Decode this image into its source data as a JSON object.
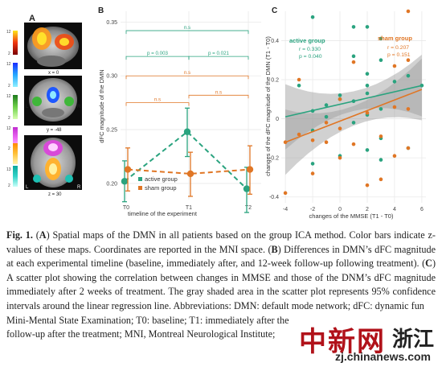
{
  "colors": {
    "active": "#2aa37f",
    "sham": "#e07625",
    "grid": "#e9e9e9",
    "ci_band": "#9a9a9a"
  },
  "panel_a": {
    "letter": "A",
    "slices": [
      {
        "label": "x = 0",
        "colorbar_top": "12",
        "colorbar_bottom": "2"
      },
      {
        "label": "y = -48",
        "colorbar_top": "12",
        "colorbar_bottom": "2"
      },
      {
        "label": "z = 30",
        "colorbar_top": "12",
        "colorbar_bottom": "2"
      }
    ],
    "colorbar_labels": [
      "12",
      "2",
      "12",
      "2",
      "12",
      "2",
      "12",
      "2",
      "13",
      "2"
    ],
    "orientation": {
      "left": "L",
      "right": "R"
    }
  },
  "chart_data": [
    {
      "panel": "B",
      "type": "line",
      "xlabel": "timeline of the experiment",
      "ylabel": "dFC magnitude of the DMN",
      "categories": [
        "T0",
        "T1",
        "T2"
      ],
      "ylim": [
        0.2,
        0.35
      ],
      "yticks": [
        "0.20",
        "0.25",
        "0.30",
        "0.35"
      ],
      "grid": true,
      "legend_position": "bottom-left",
      "series": [
        {
          "name": "active group",
          "values": [
            0.202,
            0.248,
            0.195
          ],
          "err_low": [
            0.183,
            0.225,
            0.173
          ],
          "err_high": [
            0.221,
            0.27,
            0.215
          ]
        },
        {
          "name": "sham group",
          "values": [
            0.213,
            0.209,
            0.213
          ],
          "err_low": [
            0.193,
            0.188,
            0.19
          ],
          "err_high": [
            0.233,
            0.229,
            0.235
          ]
        }
      ],
      "brackets": [
        {
          "group": "active group",
          "from": "T0",
          "to": "T2",
          "y": 0.342,
          "label": "n.s"
        },
        {
          "group": "active group",
          "from": "T0",
          "to": "T1",
          "y": 0.318,
          "label": "p = 0.003"
        },
        {
          "group": "active group",
          "from": "T1",
          "to": "T2",
          "y": 0.318,
          "label": "p = 0.021"
        },
        {
          "group": "sham group",
          "from": "T0",
          "to": "T2",
          "y": 0.3,
          "label": "n.s"
        },
        {
          "group": "sham group",
          "from": "T0",
          "to": "T1",
          "y": 0.275,
          "label": "n.s"
        },
        {
          "group": "sham group",
          "from": "T1",
          "to": "T2",
          "y": 0.282,
          "label": "n.s"
        }
      ]
    },
    {
      "panel": "C",
      "type": "scatter",
      "xlabel": "changes of the MMSE (T1 - T0)",
      "ylabel": "changes of the dFC magnitude of the DMN (T1 - T0)",
      "xlim": [
        -4.3,
        6.3
      ],
      "ylim": [
        -0.43,
        0.55
      ],
      "xticks": [
        -4,
        -2,
        0,
        2,
        4,
        6
      ],
      "yticks": [
        -0.4,
        -0.2,
        0,
        0.2,
        0.4
      ],
      "ytick_labels": [
        "-0.4",
        "-0.2",
        "0",
        "0.2",
        "0.4"
      ],
      "grid": true,
      "series": [
        {
          "name": "active group",
          "stats": [
            "r = 0.330",
            "p = 0.040"
          ],
          "points": [
            [
              -2,
              0.52
            ],
            [
              -3,
              0.17
            ],
            [
              -2,
              0.04
            ],
            [
              -2,
              -0.06
            ],
            [
              -2,
              -0.23
            ],
            [
              -1,
              0.07
            ],
            [
              -1,
              0.01
            ],
            [
              0,
              0.12
            ],
            [
              0,
              0.1
            ],
            [
              0,
              -0.19
            ],
            [
              1,
              0.47
            ],
            [
              1,
              0.32
            ],
            [
              1,
              0.09
            ],
            [
              1,
              -0.02
            ],
            [
              2,
              0.47
            ],
            [
              2,
              0.23
            ],
            [
              2,
              0.17
            ],
            [
              2,
              0.13
            ],
            [
              2,
              0.02
            ],
            [
              2,
              -0.16
            ],
            [
              3,
              0.41
            ],
            [
              3,
              0.3
            ],
            [
              3,
              0.05
            ],
            [
              3,
              -0.1
            ],
            [
              3,
              -0.21
            ],
            [
              4,
              0.19
            ],
            [
              5,
              0.22
            ],
            [
              5,
              -0.15
            ],
            [
              6,
              0.17
            ]
          ],
          "fit": [
            [
              -4,
              0.01
            ],
            [
              6,
              0.17
            ]
          ]
        },
        {
          "name": "sham group",
          "stats": [
            "r = 0.207",
            "p = 0.151"
          ],
          "points": [
            [
              -4,
              -0.12
            ],
            [
              -4,
              -0.38
            ],
            [
              -3,
              0.2
            ],
            [
              -3,
              -0.08
            ],
            [
              -2,
              -0.11
            ],
            [
              -2,
              -0.28
            ],
            [
              -1,
              -0.02
            ],
            [
              -1,
              -0.12
            ],
            [
              0,
              0.1
            ],
            [
              0,
              -0.05
            ],
            [
              0,
              -0.2
            ],
            [
              1,
              -0.13
            ],
            [
              1,
              0.29
            ],
            [
              2,
              0.03
            ],
            [
              2,
              -0.34
            ],
            [
              3,
              -0.09
            ],
            [
              3,
              -0.31
            ],
            [
              4,
              0.27
            ],
            [
              4,
              0.06
            ],
            [
              4,
              -0.19
            ],
            [
              5,
              0.55
            ],
            [
              5,
              0.3
            ],
            [
              5,
              0.05
            ],
            [
              5,
              -0.15
            ]
          ],
          "fit": [
            [
              -4,
              -0.12
            ],
            [
              6,
              0.15
            ]
          ]
        }
      ]
    }
  ],
  "caption": {
    "fig_label": "Fig. 1.",
    "body_1": " Spatial maps of the DMN in all patients based on the group ICA method. Color bars indicate z-values of these maps. Coordinates are reported in the MNI space. ",
    "body_2": " Differences in DMN’s dFC magnitude at each experimental timeline (baseline, immediately after, and 12-week follow-up following treatment). ",
    "body_3": " A scatter plot showing the correlation between changes in MMSE and those of the DNM’s dFC magnitude immediately after 2 weeks of treatment. The gray shaded area in the scatter plot represents 95% confidence intervals around the linear regression line. Abbreviations: DMN: default mode network; dFC: dynamic fun",
    "body_4": "Mini-Mental State Examination; T0: baseline; T1: immediately after the",
    "body_5": "follow-up after the treatment; MNI, Montreal Neurological Institute;"
  },
  "watermark": {
    "brand": "中新网",
    "region": "浙江",
    "url": "zj.chinanews.com"
  }
}
